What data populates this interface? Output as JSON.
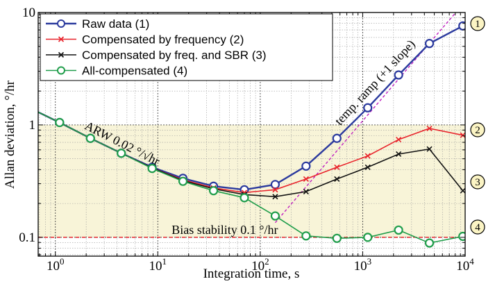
{
  "chart_data": {
    "type": "line",
    "title": "",
    "xlabel": "Integration time, s",
    "ylabel": "Allan deviation, °/hr",
    "x_scale": "log",
    "y_scale": "log",
    "xlim": [
      0.68,
      10000
    ],
    "ylim": [
      0.068,
      10
    ],
    "x_ticks": [
      {
        "v": 1,
        "m": "10",
        "e": "0"
      },
      {
        "v": 10,
        "m": "10",
        "e": "1"
      },
      {
        "v": 100,
        "m": "10",
        "e": "2"
      },
      {
        "v": 1000,
        "m": "10",
        "e": "3"
      },
      {
        "v": 10000,
        "m": "10",
        "e": "4"
      }
    ],
    "y_ticks": [
      {
        "v": 0.1,
        "label": "0.1"
      },
      {
        "v": 1,
        "label": "1"
      },
      {
        "v": 10,
        "label": "10"
      }
    ],
    "grid": true,
    "legend_position": "top-left",
    "series": [
      {
        "name": "Raw data (1)",
        "color": "#2b3a9e",
        "marker": "circle",
        "x": [
          0.68,
          1.1,
          2.2,
          4.4,
          8.8,
          17.6,
          35,
          70,
          140,
          280,
          560,
          1120,
          2240,
          4480,
          9500
        ],
        "y": [
          1.3,
          1.05,
          0.76,
          0.56,
          0.42,
          0.335,
          0.285,
          0.265,
          0.295,
          0.43,
          0.76,
          1.42,
          2.78,
          5.3,
          7.6
        ]
      },
      {
        "name": "Compensated by frequency (2)",
        "color": "#e8242c",
        "marker": "x",
        "x": [
          0.68,
          1.1,
          2.2,
          4.4,
          8.8,
          17.6,
          35,
          70,
          140,
          280,
          560,
          1120,
          2240,
          4480,
          9500
        ],
        "y": [
          1.3,
          1.05,
          0.76,
          0.56,
          0.415,
          0.325,
          0.275,
          0.25,
          0.265,
          0.33,
          0.42,
          0.53,
          0.74,
          0.93,
          0.81
        ]
      },
      {
        "name": "Compensated by freq. and SBR (3)",
        "color": "#111111",
        "marker": "x",
        "x": [
          0.68,
          1.1,
          2.2,
          4.4,
          8.8,
          17.6,
          35,
          70,
          140,
          280,
          560,
          1120,
          2240,
          4480,
          9500
        ],
        "y": [
          1.3,
          1.05,
          0.76,
          0.56,
          0.415,
          0.32,
          0.27,
          0.24,
          0.23,
          0.255,
          0.33,
          0.42,
          0.55,
          0.61,
          0.26
        ]
      },
      {
        "name": "All-compensated (4)",
        "color": "#1f9d4a",
        "marker": "circle",
        "x": [
          0.68,
          1.1,
          2.2,
          4.4,
          8.8,
          17.6,
          35,
          70,
          140,
          280,
          560,
          1120,
          2240,
          4480,
          9500
        ],
        "y": [
          1.3,
          1.05,
          0.76,
          0.56,
          0.41,
          0.315,
          0.26,
          0.225,
          0.155,
          0.103,
          0.098,
          0.1,
          0.116,
          0.089,
          0.102
        ]
      }
    ],
    "reference_lines": [
      {
        "label": "Bias stability 0.1 °/hr",
        "type": "horizontal",
        "y": 0.1,
        "color": "#e8242c",
        "style": "dashed"
      },
      {
        "label": "temp. ramp (+1 slope)",
        "type": "slope",
        "x": [
          140,
          10000
        ],
        "y": [
          0.135,
          12.5
        ],
        "color": "#c020c0",
        "style": "dashed"
      }
    ],
    "annotations": [
      {
        "text": "ARW 0.02 °/√hr"
      }
    ],
    "series_markers": [
      "1",
      "2",
      "3",
      "4"
    ],
    "colors": {
      "bias_band": "#f8f4d8",
      "circle_marker_fill": "#fbf4c4"
    }
  }
}
